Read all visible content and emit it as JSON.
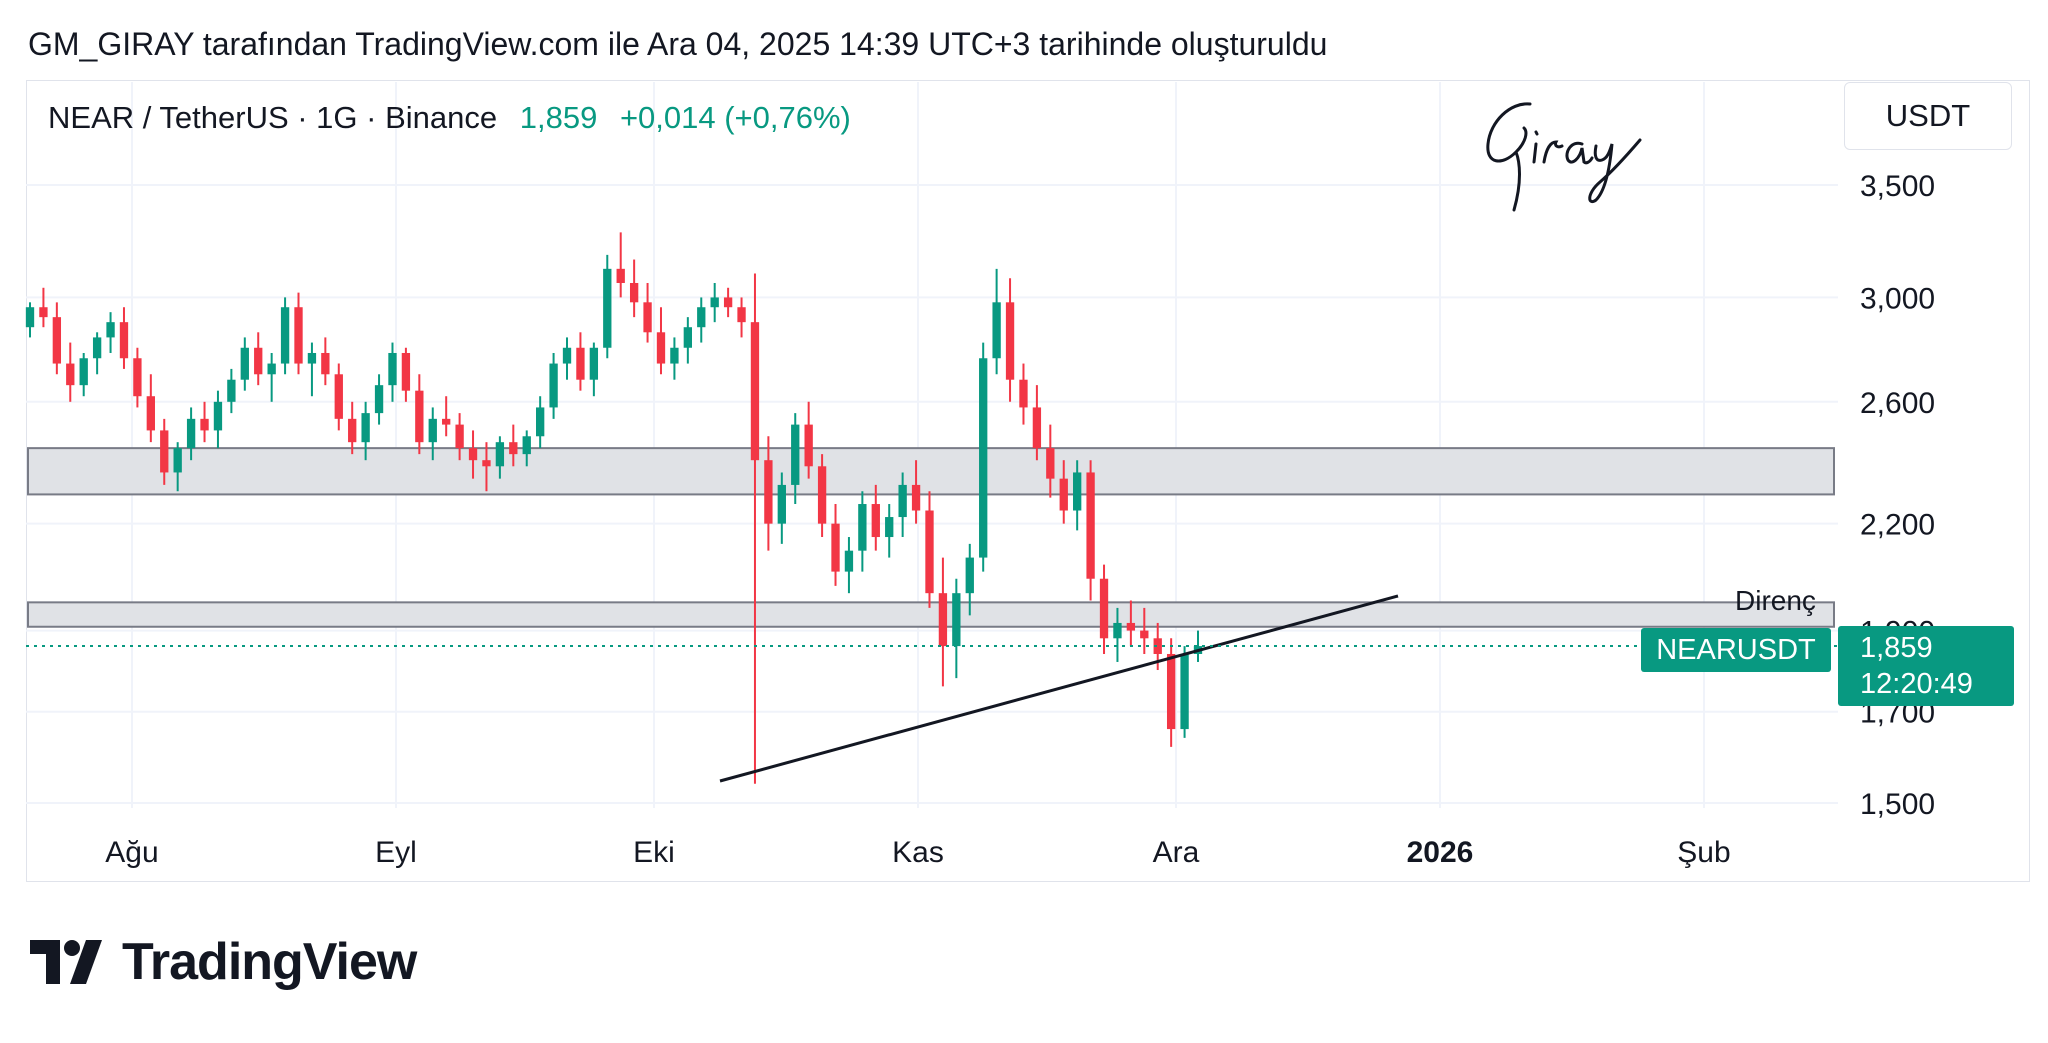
{
  "caption": "GM_GIRAY tarafından TradingView.com ile Ara 04, 2025 14:39 UTC+3 tarihinde oluşturuldu",
  "header": {
    "symbol": "NEAR / TetherUS · 1G · Binance",
    "last_price": "1,859",
    "change": "+0,014 (+0,76%)"
  },
  "unit_label": "USDT",
  "signature_text": "Giray",
  "annotation_label": "Direnç",
  "symbol_tag": "NEARUSDT",
  "price_tag": {
    "price": "1,859",
    "countdown": "12:20:49"
  },
  "brand": "TradingView",
  "colors": {
    "up": "#089981",
    "down": "#f23645",
    "zone_fill": "#e0e2e6",
    "zone_border": "#787b86"
  },
  "chart_data": {
    "type": "candlestick",
    "scale": "log",
    "ylim": [
      1.5,
      3.6
    ],
    "y_ticks": [
      "3,500",
      "3,000",
      "2,600",
      "2,200",
      "1,900",
      "1,700",
      "1,500"
    ],
    "x_ticks": [
      "Ağu",
      "Eyl",
      "Eki",
      "Kas",
      "Ara",
      "2026",
      "Şub"
    ],
    "grid": true,
    "series": [
      {
        "ohlc_approx": [
          [
            2.88,
            2.98,
            2.84,
            2.96
          ],
          [
            2.96,
            3.04,
            2.88,
            2.92
          ],
          [
            2.92,
            2.98,
            2.7,
            2.74
          ],
          [
            2.74,
            2.82,
            2.6,
            2.66
          ],
          [
            2.66,
            2.78,
            2.62,
            2.76
          ],
          [
            2.76,
            2.86,
            2.7,
            2.84
          ],
          [
            2.84,
            2.94,
            2.78,
            2.9
          ],
          [
            2.9,
            2.96,
            2.72,
            2.76
          ],
          [
            2.76,
            2.8,
            2.58,
            2.62
          ],
          [
            2.62,
            2.7,
            2.46,
            2.5
          ],
          [
            2.5,
            2.54,
            2.32,
            2.36
          ],
          [
            2.36,
            2.46,
            2.3,
            2.44
          ],
          [
            2.44,
            2.58,
            2.4,
            2.54
          ],
          [
            2.54,
            2.6,
            2.46,
            2.5
          ],
          [
            2.5,
            2.64,
            2.44,
            2.6
          ],
          [
            2.6,
            2.72,
            2.56,
            2.68
          ],
          [
            2.68,
            2.84,
            2.64,
            2.8
          ],
          [
            2.8,
            2.86,
            2.66,
            2.7
          ],
          [
            2.7,
            2.78,
            2.6,
            2.74
          ],
          [
            2.74,
            3.0,
            2.7,
            2.96
          ],
          [
            2.96,
            3.02,
            2.7,
            2.74
          ],
          [
            2.74,
            2.82,
            2.62,
            2.78
          ],
          [
            2.78,
            2.84,
            2.66,
            2.7
          ],
          [
            2.7,
            2.74,
            2.5,
            2.54
          ],
          [
            2.54,
            2.6,
            2.42,
            2.46
          ],
          [
            2.46,
            2.6,
            2.4,
            2.56
          ],
          [
            2.56,
            2.7,
            2.52,
            2.66
          ],
          [
            2.66,
            2.82,
            2.6,
            2.78
          ],
          [
            2.78,
            2.8,
            2.6,
            2.64
          ],
          [
            2.64,
            2.7,
            2.42,
            2.46
          ],
          [
            2.46,
            2.58,
            2.4,
            2.54
          ],
          [
            2.54,
            2.62,
            2.48,
            2.52
          ],
          [
            2.52,
            2.56,
            2.4,
            2.44
          ],
          [
            2.44,
            2.5,
            2.34,
            2.4
          ],
          [
            2.4,
            2.46,
            2.3,
            2.38
          ],
          [
            2.38,
            2.48,
            2.34,
            2.46
          ],
          [
            2.46,
            2.52,
            2.38,
            2.42
          ],
          [
            2.42,
            2.5,
            2.38,
            2.48
          ],
          [
            2.48,
            2.62,
            2.44,
            2.58
          ],
          [
            2.58,
            2.78,
            2.54,
            2.74
          ],
          [
            2.74,
            2.84,
            2.68,
            2.8
          ],
          [
            2.8,
            2.86,
            2.64,
            2.68
          ],
          [
            2.68,
            2.82,
            2.62,
            2.8
          ],
          [
            2.8,
            3.18,
            2.76,
            3.12
          ],
          [
            3.12,
            3.28,
            3.0,
            3.06
          ],
          [
            3.06,
            3.16,
            2.92,
            2.98
          ],
          [
            2.98,
            3.06,
            2.82,
            2.86
          ],
          [
            2.86,
            2.96,
            2.7,
            2.74
          ],
          [
            2.74,
            2.84,
            2.68,
            2.8
          ],
          [
            2.8,
            2.92,
            2.74,
            2.88
          ],
          [
            2.88,
            3.0,
            2.82,
            2.96
          ],
          [
            2.96,
            3.06,
            2.9,
            3.0
          ],
          [
            3.0,
            3.04,
            2.92,
            2.96
          ],
          [
            2.96,
            3.0,
            2.84,
            2.9
          ],
          [
            2.9,
            3.1,
            1.54,
            2.4
          ],
          [
            2.4,
            2.48,
            2.12,
            2.2
          ],
          [
            2.2,
            2.36,
            2.14,
            2.32
          ],
          [
            2.32,
            2.56,
            2.26,
            2.52
          ],
          [
            2.52,
            2.6,
            2.34,
            2.38
          ],
          [
            2.38,
            2.42,
            2.16,
            2.2
          ],
          [
            2.2,
            2.26,
            2.02,
            2.06
          ],
          [
            2.06,
            2.16,
            2.0,
            2.12
          ],
          [
            2.12,
            2.3,
            2.06,
            2.26
          ],
          [
            2.26,
            2.32,
            2.12,
            2.16
          ],
          [
            2.16,
            2.26,
            2.1,
            2.22
          ],
          [
            2.22,
            2.36,
            2.16,
            2.32
          ],
          [
            2.32,
            2.4,
            2.2,
            2.24
          ],
          [
            2.24,
            2.3,
            1.96,
            2.0
          ],
          [
            2.0,
            2.1,
            1.76,
            1.86
          ],
          [
            1.86,
            2.04,
            1.78,
            2.0
          ],
          [
            2.0,
            2.14,
            1.94,
            2.1
          ],
          [
            2.1,
            2.82,
            2.06,
            2.76
          ],
          [
            2.76,
            3.12,
            2.7,
            2.98
          ],
          [
            2.98,
            3.08,
            2.6,
            2.68
          ],
          [
            2.68,
            2.74,
            2.52,
            2.58
          ],
          [
            2.58,
            2.66,
            2.4,
            2.44
          ],
          [
            2.44,
            2.52,
            2.28,
            2.34
          ],
          [
            2.34,
            2.4,
            2.2,
            2.24
          ],
          [
            2.24,
            2.4,
            2.18,
            2.36
          ],
          [
            2.36,
            2.4,
            1.98,
            2.04
          ],
          [
            2.04,
            2.08,
            1.84,
            1.88
          ],
          [
            1.88,
            1.96,
            1.82,
            1.92
          ],
          [
            1.92,
            1.98,
            1.86,
            1.9
          ],
          [
            1.9,
            1.96,
            1.84,
            1.88
          ],
          [
            1.88,
            1.92,
            1.8,
            1.84
          ],
          [
            1.84,
            1.88,
            1.62,
            1.66
          ],
          [
            1.66,
            1.86,
            1.64,
            1.84
          ],
          [
            1.84,
            1.9,
            1.82,
            1.86
          ]
        ]
      }
    ],
    "zones": [
      {
        "low": 2.29,
        "high": 2.44
      },
      {
        "low": 1.91,
        "high": 1.975,
        "label": "Direnç"
      }
    ],
    "trendline": {
      "from": [
        1.56
      ],
      "to": [
        1.96
      ]
    },
    "current_price": 1.859
  }
}
